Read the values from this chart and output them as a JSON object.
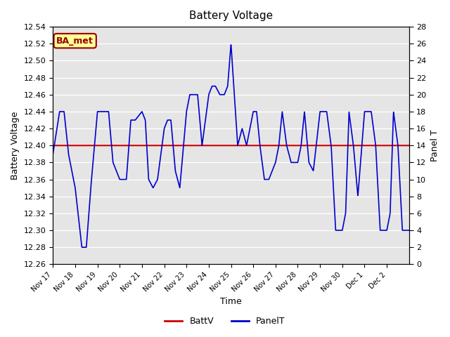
{
  "title": "Battery Voltage",
  "ylabel_left": "Battery Voltage",
  "ylabel_right": "Panel T",
  "xlabel": "Time",
  "ylim_left": [
    12.26,
    12.54
  ],
  "ylim_right": [
    0,
    28
  ],
  "battv_value": 12.4,
  "bg_color": "#e5e5e5",
  "panel_color": "#0000cc",
  "battv_color": "#cc0000",
  "legend_labels": [
    "BattV",
    "PanelT"
  ],
  "annotation_text": "BA_met",
  "annotation_bg": "#ffff99",
  "annotation_border": "#990000",
  "n_days": 16,
  "xtick_labels": [
    "Nov 17",
    "Nov 18",
    "Nov 19",
    "Nov 20",
    "Nov 21",
    "Nov 22",
    "Nov 23",
    "Nov 24",
    "Nov 25",
    "Nov 26",
    "Nov 27",
    "Nov 28",
    "Nov 29",
    "Nov 30",
    "Dec 1",
    "Dec 2"
  ],
  "panel_t_keypoints_x": [
    0.0,
    0.3,
    0.5,
    0.7,
    1.0,
    1.3,
    1.5,
    1.7,
    2.0,
    2.3,
    2.5,
    2.7,
    3.0,
    3.3,
    3.5,
    3.7,
    4.0,
    4.15,
    4.3,
    4.5,
    4.7,
    5.0,
    5.15,
    5.3,
    5.5,
    5.7,
    6.0,
    6.15,
    6.3,
    6.5,
    6.7,
    7.0,
    7.15,
    7.3,
    7.5,
    7.7,
    7.85,
    8.0,
    8.15,
    8.3,
    8.5,
    8.7,
    9.0,
    9.15,
    9.3,
    9.5,
    9.7,
    10.0,
    10.15,
    10.3,
    10.5,
    10.7,
    11.0,
    11.15,
    11.3,
    11.5,
    11.7,
    12.0,
    12.15,
    12.3,
    12.5,
    12.7,
    13.0,
    13.15,
    13.3,
    13.5,
    13.7,
    14.0,
    14.15,
    14.3,
    14.5,
    14.7,
    15.0,
    15.15,
    15.3,
    15.5,
    15.7,
    16.0
  ],
  "panel_t_keypoints_y": [
    13,
    18,
    18,
    13,
    9,
    2,
    2,
    9,
    18,
    18,
    18,
    12,
    10,
    10,
    17,
    17,
    18,
    17,
    10,
    9,
    10,
    16,
    17,
    17,
    11,
    9,
    18,
    20,
    20,
    20,
    14,
    20,
    21,
    21,
    20,
    20,
    21,
    26,
    20,
    14,
    16,
    14,
    18,
    18,
    14,
    10,
    10,
    12,
    14,
    18,
    14,
    12,
    12,
    14,
    18,
    12,
    11,
    18,
    18,
    18,
    14,
    4,
    4,
    6,
    18,
    14,
    8,
    18,
    18,
    18,
    14,
    4,
    4,
    6,
    18,
    14,
    4,
    4
  ]
}
